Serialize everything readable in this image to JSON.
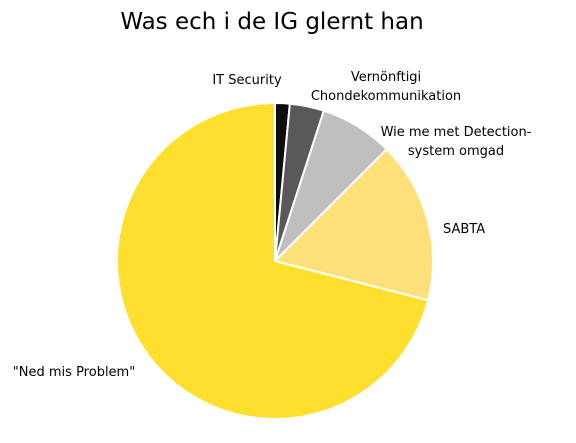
{
  "chart_data": {
    "type": "pie",
    "title": "Was ech i de IG glernt han",
    "start": "12 o'clock",
    "direction": "clockwise",
    "slices": [
      {
        "label": [
          "IT Security"
        ],
        "value": 1.5,
        "color": "#0d0d0d"
      },
      {
        "label": [
          "Vernönftigi",
          "Chondekommunikation"
        ],
        "value": 3.5,
        "color": "#595959"
      },
      {
        "label": [
          "Wie me met Detection-",
          "system omgad"
        ],
        "value": 7.5,
        "color": "#bfbfbf"
      },
      {
        "label": [
          "SABTA"
        ],
        "value": 16.5,
        "color": "#ffdf78"
      },
      {
        "label": [
          "\"Ned mis Problem\""
        ],
        "value": 71,
        "color": "#ffdf2d"
      }
    ]
  }
}
